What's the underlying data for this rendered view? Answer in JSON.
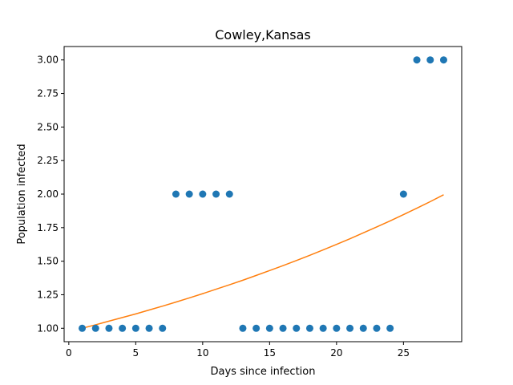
{
  "chart_data": {
    "type": "scatter",
    "title": "Cowley,Kansas",
    "xlabel": "Days since infection",
    "ylabel": "Population infected",
    "xlim": [
      -0.35,
      29.35
    ],
    "ylim": [
      0.9,
      3.1
    ],
    "xticks": [
      0,
      5,
      10,
      15,
      20,
      25
    ],
    "xtick_labels": [
      "0",
      "5",
      "10",
      "15",
      "20",
      "25"
    ],
    "yticks": [
      1.0,
      1.25,
      1.5,
      1.75,
      2.0,
      2.25,
      2.5,
      2.75,
      3.0
    ],
    "ytick_labels": [
      "1.00",
      "1.25",
      "1.50",
      "1.75",
      "2.00",
      "2.25",
      "2.50",
      "2.75",
      "3.00"
    ],
    "grid": false,
    "series": [
      {
        "kind": "scatter",
        "color": "#1f77b4",
        "x": [
          1,
          2,
          3,
          4,
          5,
          6,
          7,
          8,
          9,
          10,
          11,
          12,
          13,
          14,
          15,
          16,
          17,
          18,
          19,
          20,
          21,
          22,
          23,
          24,
          25,
          26,
          27,
          28
        ],
        "y": [
          1,
          1,
          1,
          1,
          1,
          1,
          1,
          2,
          2,
          2,
          2,
          2,
          1,
          1,
          1,
          1,
          1,
          1,
          1,
          1,
          1,
          1,
          1,
          1,
          2,
          3,
          3,
          3
        ]
      },
      {
        "kind": "line",
        "color": "#ff7f0e",
        "x": [
          1,
          2,
          3,
          4,
          5,
          6,
          7,
          8,
          9,
          10,
          11,
          12,
          13,
          14,
          15,
          16,
          17,
          18,
          19,
          20,
          21,
          22,
          23,
          24,
          25,
          26,
          27,
          28
        ],
        "y": [
          1.0,
          1.026,
          1.053,
          1.08,
          1.107,
          1.136,
          1.165,
          1.195,
          1.226,
          1.258,
          1.291,
          1.324,
          1.358,
          1.394,
          1.43,
          1.467,
          1.505,
          1.544,
          1.584,
          1.625,
          1.667,
          1.711,
          1.755,
          1.8,
          1.847,
          1.895,
          1.944,
          1.995
        ]
      }
    ]
  }
}
